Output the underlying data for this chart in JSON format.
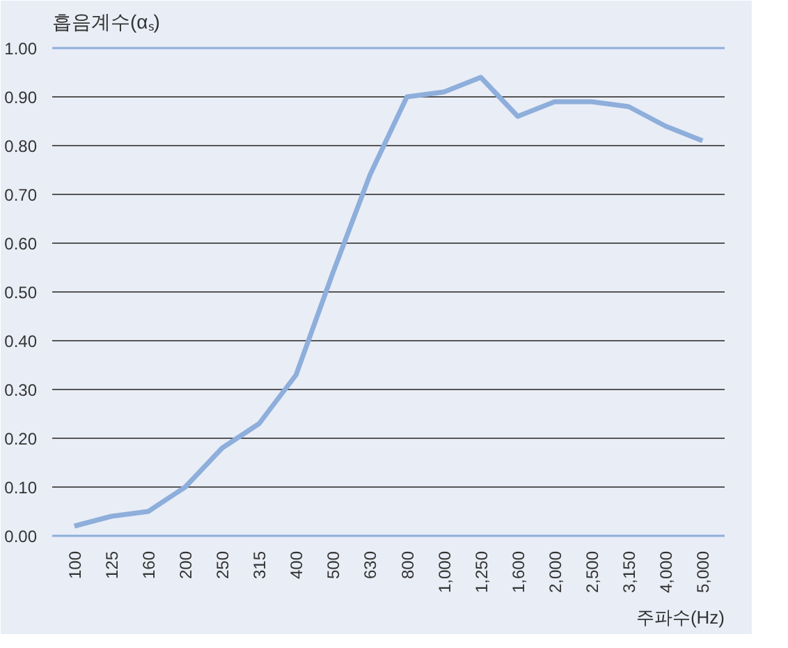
{
  "chart_data": {
    "type": "line",
    "ylabel": "흡음계수(αₛ)",
    "xlabel": "주파수(Hz)",
    "categories": [
      "100",
      "125",
      "160",
      "200",
      "250",
      "315",
      "400",
      "500",
      "630",
      "800",
      "1,000",
      "1,250",
      "1,600",
      "2,000",
      "2,500",
      "3,150",
      "4,000",
      "5,000"
    ],
    "series": [
      {
        "color": "#8eaedb",
        "values": [
          0.02,
          0.04,
          0.05,
          0.1,
          0.18,
          0.23,
          0.33,
          0.54,
          0.74,
          0.9,
          0.91,
          0.94,
          0.86,
          0.89,
          0.89,
          0.88,
          0.84,
          0.81
        ]
      }
    ],
    "ylim": [
      0,
      1
    ],
    "yticks": [
      {
        "value": 0,
        "label": "0.00"
      },
      {
        "value": 0.1,
        "label": "0.10"
      },
      {
        "value": 0.2,
        "label": "0.20"
      },
      {
        "value": 0.3,
        "label": "0.30"
      },
      {
        "value": 0.4,
        "label": "0.40"
      },
      {
        "value": 0.5,
        "label": "0.50"
      },
      {
        "value": 0.6,
        "label": "0.60"
      },
      {
        "value": 0.7,
        "label": "0.70"
      },
      {
        "value": 0.8,
        "label": "0.80"
      },
      {
        "value": 0.9,
        "label": "0.90"
      },
      {
        "value": 1,
        "label": "1.00"
      }
    ],
    "grid": "y",
    "marker": "none",
    "line_style": "solid"
  }
}
